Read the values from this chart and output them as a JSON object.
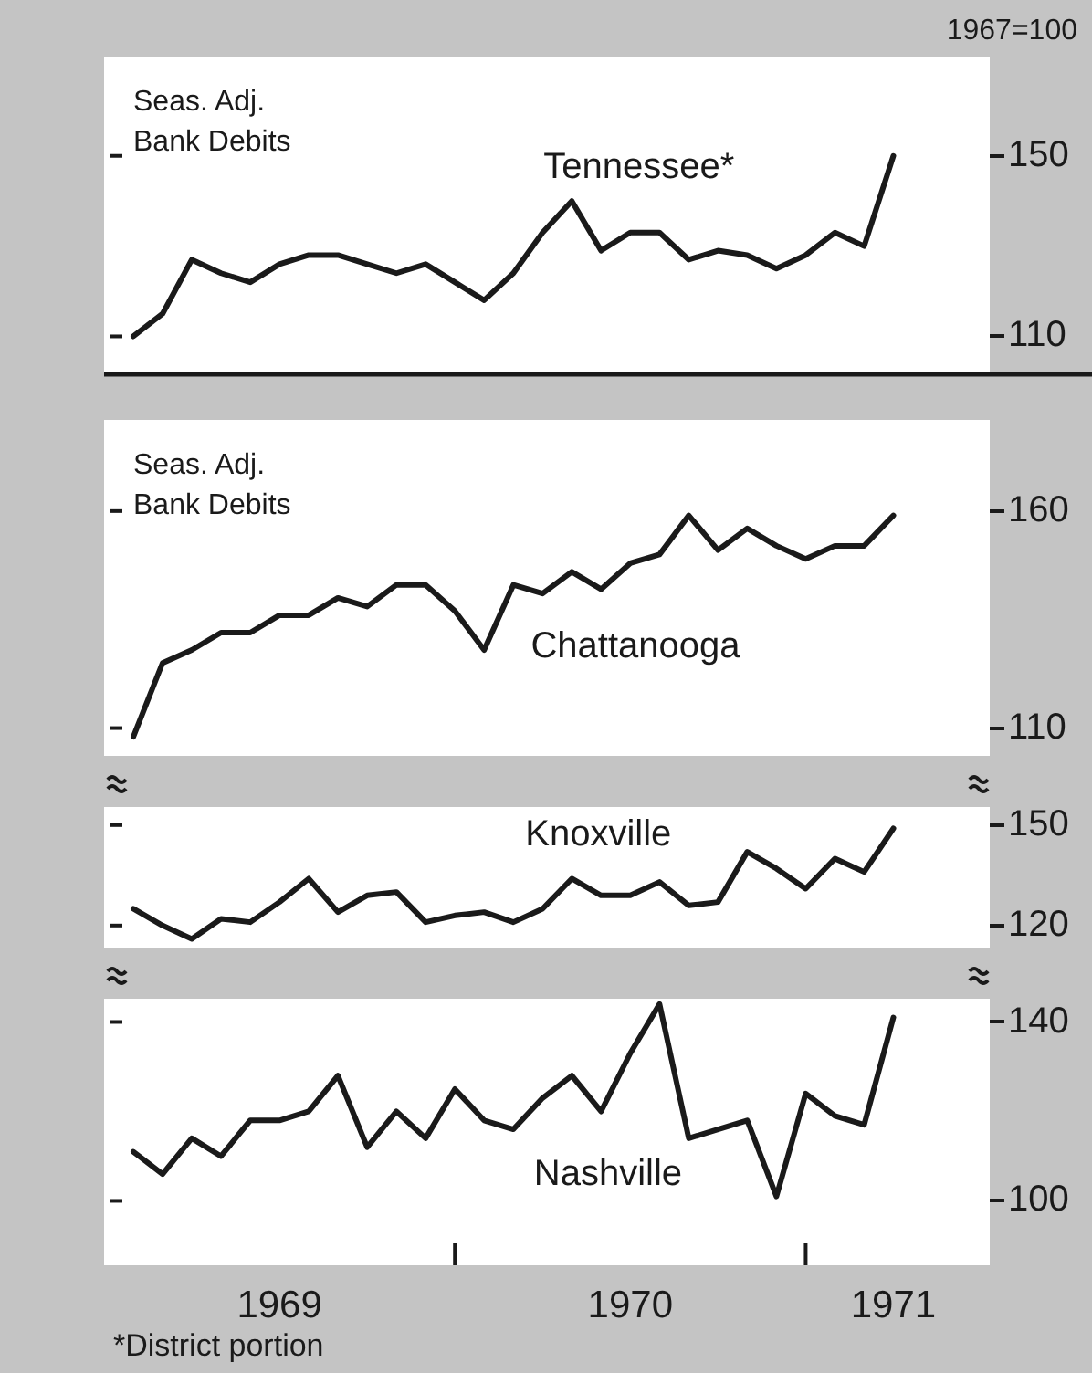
{
  "chart_data": [
    {
      "type": "line",
      "ylabel": "Seas. Adj.\nBank Debits",
      "annotations": [
        "1967=100"
      ],
      "tick_labels": "y",
      "x": [
        "1969-02",
        "1969-03",
        "1969-04",
        "1969-05",
        "1969-06",
        "1969-07",
        "1969-08",
        "1969-09",
        "1969-10",
        "1969-11",
        "1969-12",
        "1970-01",
        "1970-02",
        "1970-03",
        "1970-04",
        "1970-05",
        "1970-06",
        "1970-07",
        "1970-08",
        "1970-09",
        "1970-10",
        "1970-11",
        "1970-12",
        "1971-01",
        "1971-02",
        "1971-03",
        "1971-04"
      ],
      "xlim": [
        "1969-01",
        "1971-07-10"
      ],
      "ylim": [
        102,
        172
      ],
      "yticks": [
        110,
        150
      ],
      "series": [
        {
          "name": "Tennessee*",
          "color": "#1a1a1a",
          "values": [
            110,
            115,
            127,
            124,
            122,
            126,
            128,
            128,
            126,
            124,
            126,
            122,
            118,
            124,
            133,
            140,
            129,
            133,
            133,
            127,
            129,
            128,
            125,
            128,
            133,
            130,
            150
          ]
        }
      ]
    },
    {
      "type": "line",
      "ylabel": "Seas. Adj.\nBank Debits",
      "tick_labels": "y",
      "x": [
        "1969-02",
        "1969-03",
        "1969-04",
        "1969-05",
        "1969-06",
        "1969-07",
        "1969-08",
        "1969-09",
        "1969-10",
        "1969-11",
        "1969-12",
        "1970-01",
        "1970-02",
        "1970-03",
        "1970-04",
        "1970-05",
        "1970-06",
        "1970-07",
        "1970-08",
        "1970-09",
        "1970-10",
        "1970-11",
        "1970-12",
        "1971-01",
        "1971-02",
        "1971-03",
        "1971-04"
      ],
      "xlim": [
        "1969-01",
        "1971-07-10"
      ],
      "ylim": [
        103.6,
        181
      ],
      "yticks": [
        110,
        160
      ],
      "series": [
        {
          "name": "Chattanooga",
          "color": "#1a1a1a",
          "values": [
            108,
            125,
            128,
            132,
            132,
            136,
            136,
            140,
            138,
            143,
            143,
            137,
            128,
            143,
            141,
            146,
            142,
            148,
            150,
            159,
            151,
            156,
            152,
            149,
            152,
            152,
            159
          ]
        }
      ]
    },
    {
      "type": "line",
      "tick_labels": "y",
      "x": [
        "1969-02",
        "1969-03",
        "1969-04",
        "1969-05",
        "1969-06",
        "1969-07",
        "1969-08",
        "1969-09",
        "1969-10",
        "1969-11",
        "1969-12",
        "1970-01",
        "1970-02",
        "1970-03",
        "1970-04",
        "1970-05",
        "1970-06",
        "1970-07",
        "1970-08",
        "1970-09",
        "1970-10",
        "1970-11",
        "1970-12",
        "1971-01",
        "1971-02",
        "1971-03",
        "1971-04"
      ],
      "xlim": [
        "1969-01",
        "1971-07-10"
      ],
      "ylim": [
        113.4,
        155.4
      ],
      "yticks": [
        120,
        150
      ],
      "series": [
        {
          "name": "Knoxville",
          "color": "#1a1a1a",
          "values": [
            125,
            120,
            116,
            122,
            121,
            127,
            134,
            124,
            129,
            130,
            121,
            123,
            124,
            121,
            125,
            134,
            129,
            129,
            133,
            126,
            127,
            142,
            137,
            131,
            140,
            136,
            149
          ]
        }
      ]
    },
    {
      "type": "line",
      "annotations": [
        "*District portion"
      ],
      "x": [
        "1969-02",
        "1969-03",
        "1969-04",
        "1969-05",
        "1969-06",
        "1969-07",
        "1969-08",
        "1969-09",
        "1969-10",
        "1969-11",
        "1969-12",
        "1970-01",
        "1970-02",
        "1970-03",
        "1970-04",
        "1970-05",
        "1970-06",
        "1970-07",
        "1970-08",
        "1970-09",
        "1970-10",
        "1970-11",
        "1970-12",
        "1971-01",
        "1971-02",
        "1971-03",
        "1971-04"
      ],
      "xlim": [
        "1969-01",
        "1971-07-10"
      ],
      "xticks": [
        {
          "value": "1969-07",
          "label": "1969"
        },
        {
          "value": "1970-01",
          "label": null
        },
        {
          "value": "1970-07",
          "label": "1970"
        },
        {
          "value": "1971-01",
          "label": null
        },
        {
          "value": "1971-04",
          "label": "1971"
        }
      ],
      "ylim": [
        85.6,
        145.2
      ],
      "yticks": [
        100,
        140
      ],
      "series": [
        {
          "name": "Nashville",
          "color": "#1a1a1a",
          "values": [
            111,
            106,
            114,
            110,
            118,
            118,
            120,
            128,
            112,
            120,
            114,
            125,
            118,
            116,
            123,
            128,
            120,
            133,
            144,
            114,
            116,
            118,
            101,
            124,
            119,
            117,
            141
          ]
        }
      ]
    }
  ]
}
